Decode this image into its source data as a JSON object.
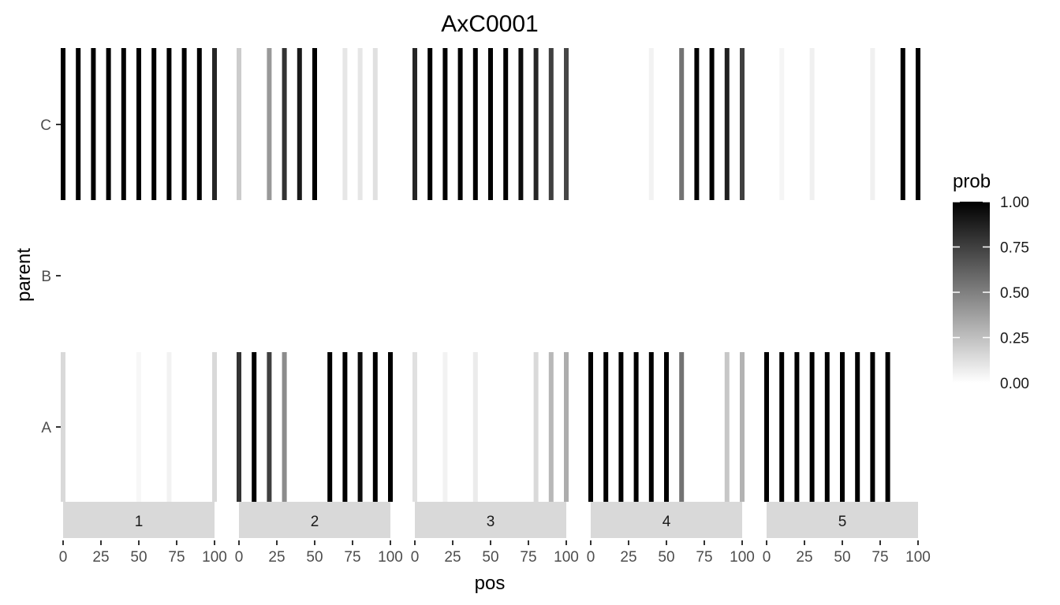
{
  "chart_data": {
    "type": "heatmap",
    "title": "AxC0001",
    "xlabel": "pos",
    "ylabel": "parent",
    "parents": [
      "A",
      "B",
      "C"
    ],
    "x_ticks": [
      0,
      25,
      50,
      75,
      100
    ],
    "x_tick_labels": [
      "0",
      "25",
      "50",
      "75",
      "100"
    ],
    "xlim": [
      0,
      100
    ],
    "legend": {
      "title": "prob",
      "placement": "right",
      "ticks": [
        0,
        0.25,
        0.5,
        0.75,
        1.0
      ],
      "tick_labels": [
        "0.00",
        "0.25",
        "0.50",
        "0.75",
        "1.00"
      ],
      "low_color": "#FFFFFF",
      "high_color": "#000000"
    },
    "facets": [
      {
        "label": "1",
        "A": [
          [
            0,
            0.15
          ],
          [
            50,
            0.03
          ],
          [
            70,
            0.05
          ],
          [
            100,
            0.15
          ]
        ],
        "B": [],
        "C": [
          [
            0,
            1
          ],
          [
            10,
            1
          ],
          [
            20,
            1
          ],
          [
            30,
            1
          ],
          [
            40,
            1
          ],
          [
            50,
            1
          ],
          [
            60,
            1
          ],
          [
            70,
            1
          ],
          [
            80,
            1
          ],
          [
            90,
            1
          ],
          [
            100,
            0.85
          ]
        ]
      },
      {
        "label": "2",
        "A": [
          [
            0,
            0.8
          ],
          [
            10,
            1
          ],
          [
            20,
            0.75
          ],
          [
            30,
            0.45
          ],
          [
            60,
            1
          ],
          [
            70,
            1
          ],
          [
            80,
            0.95
          ],
          [
            90,
            1
          ],
          [
            100,
            1
          ]
        ],
        "B": [],
        "C": [
          [
            0,
            0.2
          ],
          [
            20,
            0.4
          ],
          [
            30,
            0.8
          ],
          [
            40,
            0.9
          ],
          [
            50,
            1
          ],
          [
            70,
            0.1
          ],
          [
            80,
            0.1
          ],
          [
            90,
            0.12
          ]
        ]
      },
      {
        "label": "3",
        "A": [
          [
            0,
            0.12
          ],
          [
            20,
            0.05
          ],
          [
            40,
            0.08
          ],
          [
            80,
            0.15
          ],
          [
            90,
            0.28
          ],
          [
            100,
            0.32
          ]
        ],
        "B": [],
        "C": [
          [
            0,
            0.85
          ],
          [
            10,
            1
          ],
          [
            20,
            1
          ],
          [
            30,
            1
          ],
          [
            40,
            1
          ],
          [
            50,
            1
          ],
          [
            60,
            1
          ],
          [
            70,
            0.95
          ],
          [
            80,
            0.85
          ],
          [
            90,
            0.75
          ],
          [
            100,
            0.72
          ]
        ]
      },
      {
        "label": "4",
        "A": [
          [
            0,
            1
          ],
          [
            10,
            1
          ],
          [
            20,
            1
          ],
          [
            30,
            1
          ],
          [
            40,
            1
          ],
          [
            50,
            1
          ],
          [
            60,
            0.55
          ],
          [
            90,
            0.22
          ],
          [
            100,
            0.3
          ]
        ],
        "B": [],
        "C": [
          [
            40,
            0.05
          ],
          [
            60,
            0.55
          ],
          [
            70,
            1
          ],
          [
            80,
            1
          ],
          [
            90,
            0.88
          ],
          [
            100,
            0.75
          ]
        ]
      },
      {
        "label": "5",
        "A": [
          [
            0,
            1
          ],
          [
            10,
            1
          ],
          [
            20,
            1
          ],
          [
            30,
            1
          ],
          [
            40,
            1
          ],
          [
            50,
            1
          ],
          [
            60,
            1
          ],
          [
            70,
            1
          ],
          [
            80,
            1
          ]
        ],
        "B": [],
        "C": [
          [
            10,
            0.04
          ],
          [
            30,
            0.06
          ],
          [
            70,
            0.06
          ],
          [
            90,
            1
          ],
          [
            100,
            1
          ]
        ]
      }
    ]
  }
}
